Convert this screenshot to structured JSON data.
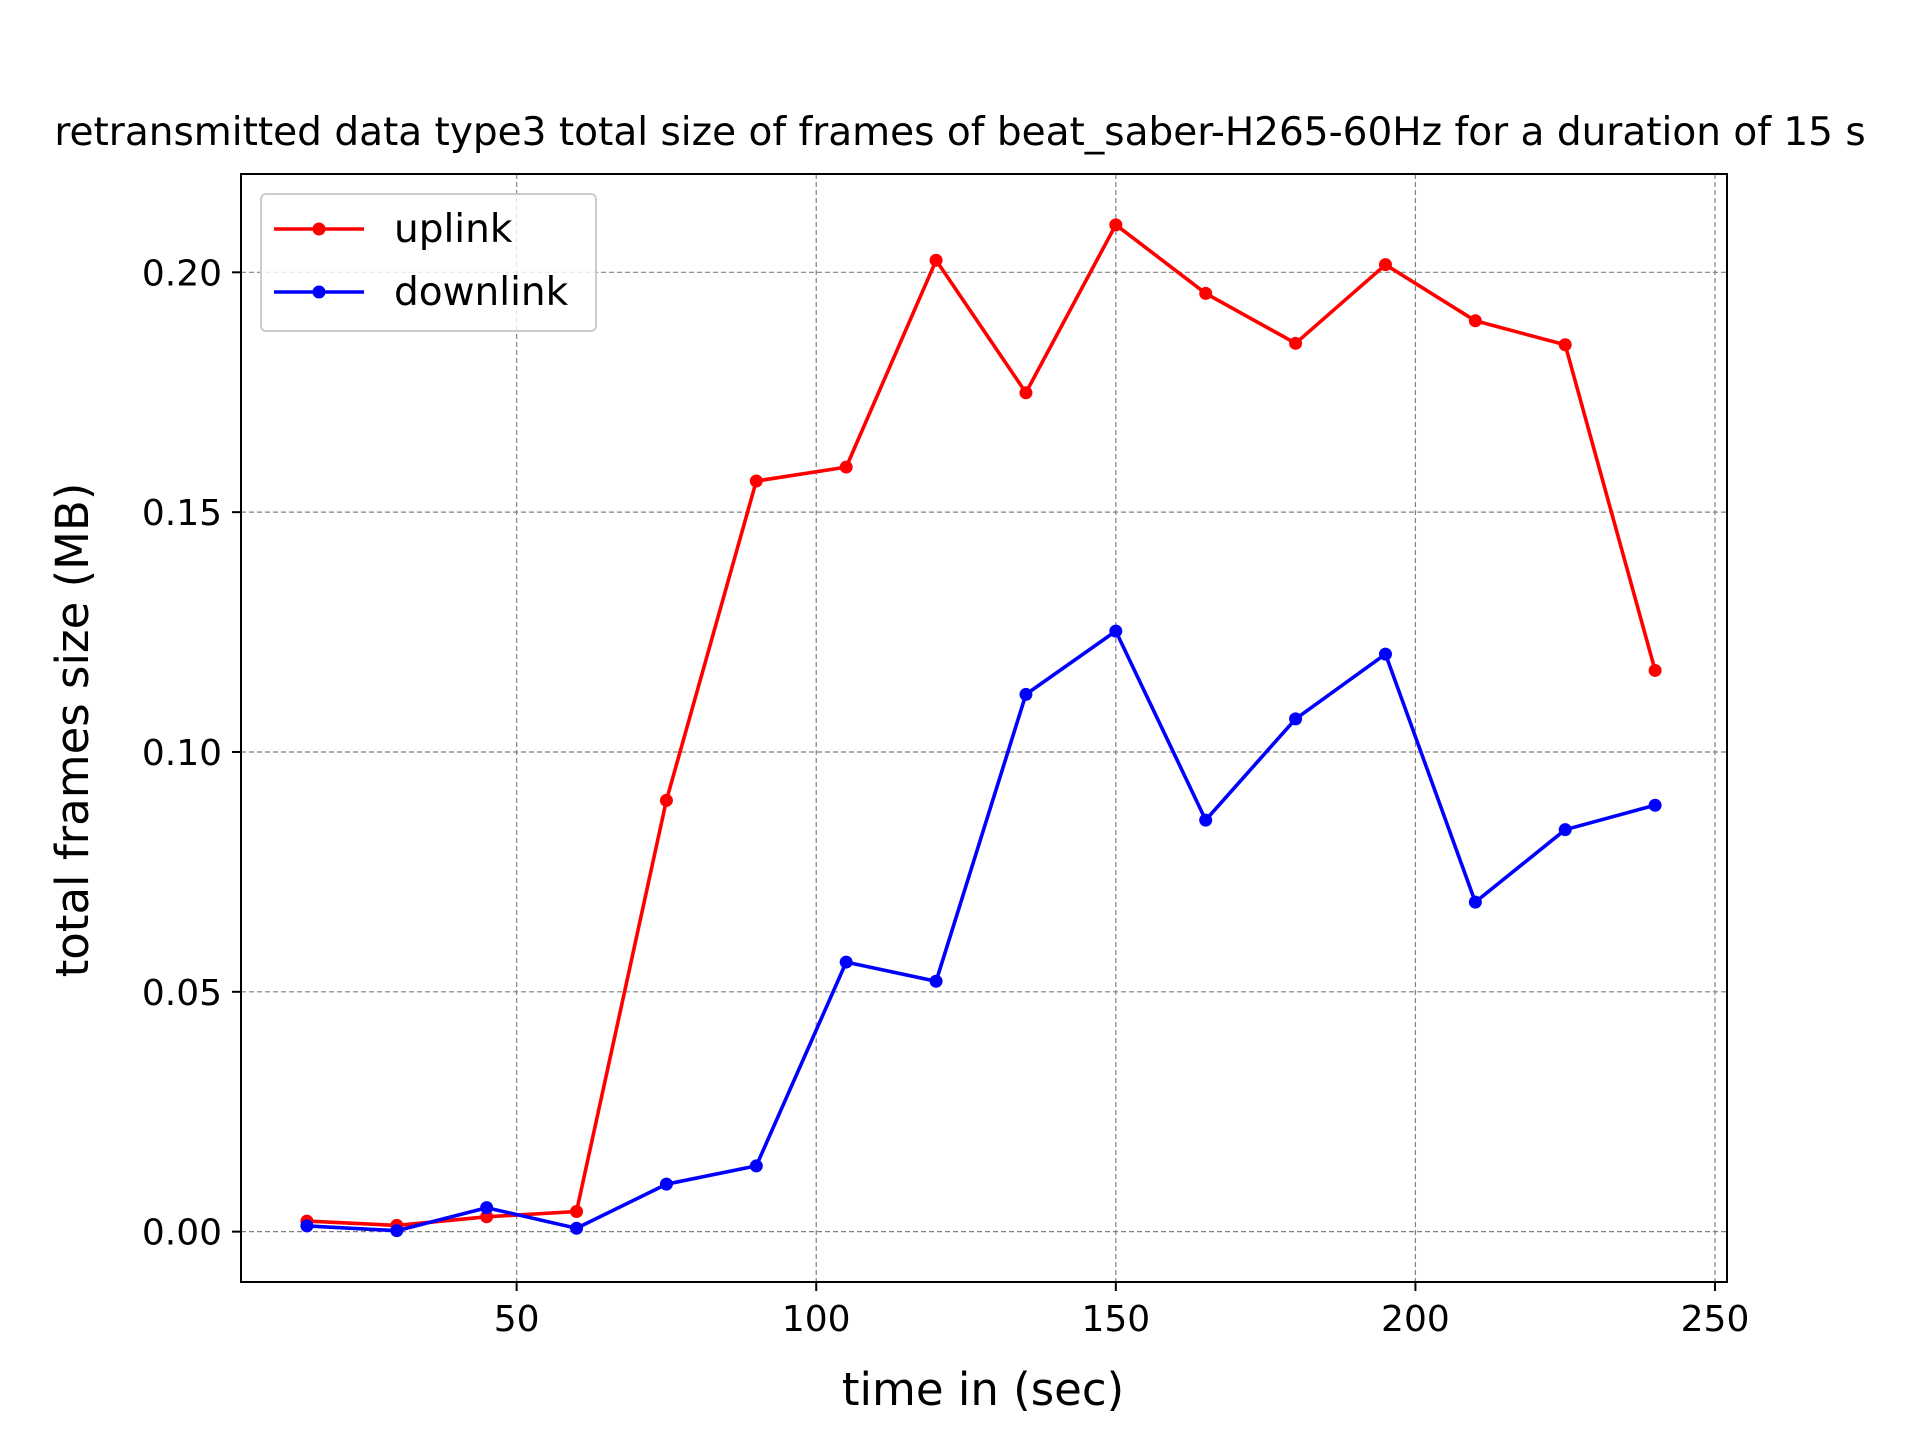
{
  "chart_data": {
    "type": "line",
    "title": "retransmitted data type3 total size of frames of beat_saber-H265-60Hz for a duration of 15 s",
    "xlabel": "time in (sec)",
    "ylabel": "total frames size (MB)",
    "xlim": [
      4,
      252
    ],
    "ylim": [
      -0.0105,
      0.2205
    ],
    "xticks": [
      50,
      100,
      150,
      200,
      250
    ],
    "yticks": [
      0.0,
      0.05,
      0.1,
      0.15,
      0.2
    ],
    "xtick_labels": [
      "50",
      "100",
      "150",
      "200",
      "250"
    ],
    "ytick_labels": [
      "0.00",
      "0.05",
      "0.10",
      "0.15",
      "0.20"
    ],
    "grid": true,
    "legend_position": "top-left",
    "x": [
      15,
      30,
      45,
      60,
      75,
      90,
      105,
      120,
      135,
      150,
      165,
      180,
      195,
      210,
      225,
      240
    ],
    "series": [
      {
        "name": "uplink",
        "color": "#ff0000",
        "values": [
          0.0022,
          0.0013,
          0.0031,
          0.0042,
          0.0899,
          0.1565,
          0.1594,
          0.2025,
          0.1749,
          0.2099,
          0.1956,
          0.1852,
          0.2016,
          0.1899,
          0.1849,
          0.117
        ]
      },
      {
        "name": "downlink",
        "color": "#0000ff",
        "values": [
          0.0012,
          0.0002,
          0.005,
          0.0007,
          0.0099,
          0.0137,
          0.0562,
          0.0522,
          0.112,
          0.1252,
          0.0858,
          0.1069,
          0.1204,
          0.0687,
          0.0838,
          0.0889
        ]
      }
    ]
  }
}
